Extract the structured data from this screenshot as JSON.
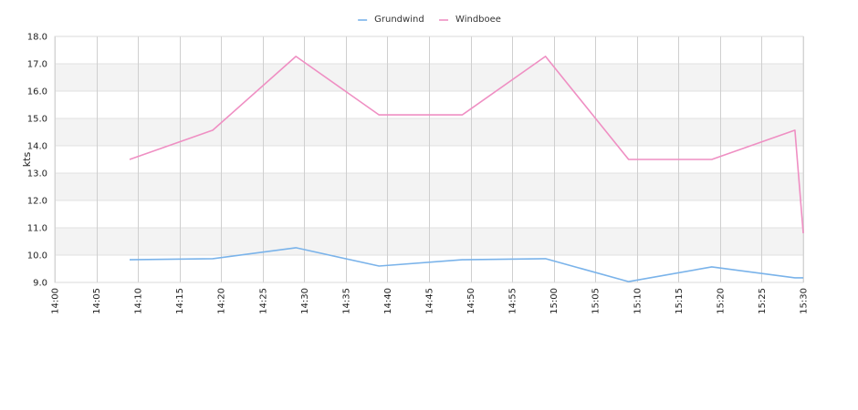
{
  "chart_data": {
    "type": "line",
    "title": "",
    "xlabel": "",
    "ylabel": "kts",
    "ylim": [
      9.0,
      18.0
    ],
    "xlim": [
      "14:00",
      "15:30"
    ],
    "x_ticks": [
      "14:00",
      "14:05",
      "14:10",
      "14:15",
      "14:20",
      "14:25",
      "14:30",
      "14:35",
      "14:40",
      "14:45",
      "14:50",
      "14:55",
      "15:00",
      "15:05",
      "15:10",
      "15:15",
      "15:20",
      "15:25",
      "15:30"
    ],
    "y_ticks": [
      "9.0",
      "10.0",
      "11.0",
      "12.0",
      "13.0",
      "14.0",
      "15.0",
      "16.0",
      "17.0",
      "18.0"
    ],
    "grid": true,
    "legend_position": "top-center",
    "series": [
      {
        "name": "Grundwind",
        "color": "#7ab3ea",
        "points": [
          {
            "x": "14:09",
            "y": 9.83
          },
          {
            "x": "14:19",
            "y": 9.87
          },
          {
            "x": "14:29",
            "y": 10.27
          },
          {
            "x": "14:39",
            "y": 9.6
          },
          {
            "x": "14:49",
            "y": 9.83
          },
          {
            "x": "14:59",
            "y": 9.87
          },
          {
            "x": "15:09",
            "y": 9.03
          },
          {
            "x": "15:19",
            "y": 9.57
          },
          {
            "x": "15:29",
            "y": 9.17
          },
          {
            "x": "15:30",
            "y": 9.17
          }
        ]
      },
      {
        "name": "Windboee",
        "color": "#ef8fc3",
        "points": [
          {
            "x": "14:09",
            "y": 13.5
          },
          {
            "x": "14:19",
            "y": 14.57
          },
          {
            "x": "14:29",
            "y": 17.27
          },
          {
            "x": "14:39",
            "y": 15.13
          },
          {
            "x": "14:49",
            "y": 15.13
          },
          {
            "x": "14:59",
            "y": 17.27
          },
          {
            "x": "15:09",
            "y": 13.5
          },
          {
            "x": "15:19",
            "y": 13.5
          },
          {
            "x": "15:29",
            "y": 14.57
          },
          {
            "x": "15:30",
            "y": 10.8
          }
        ]
      }
    ]
  }
}
